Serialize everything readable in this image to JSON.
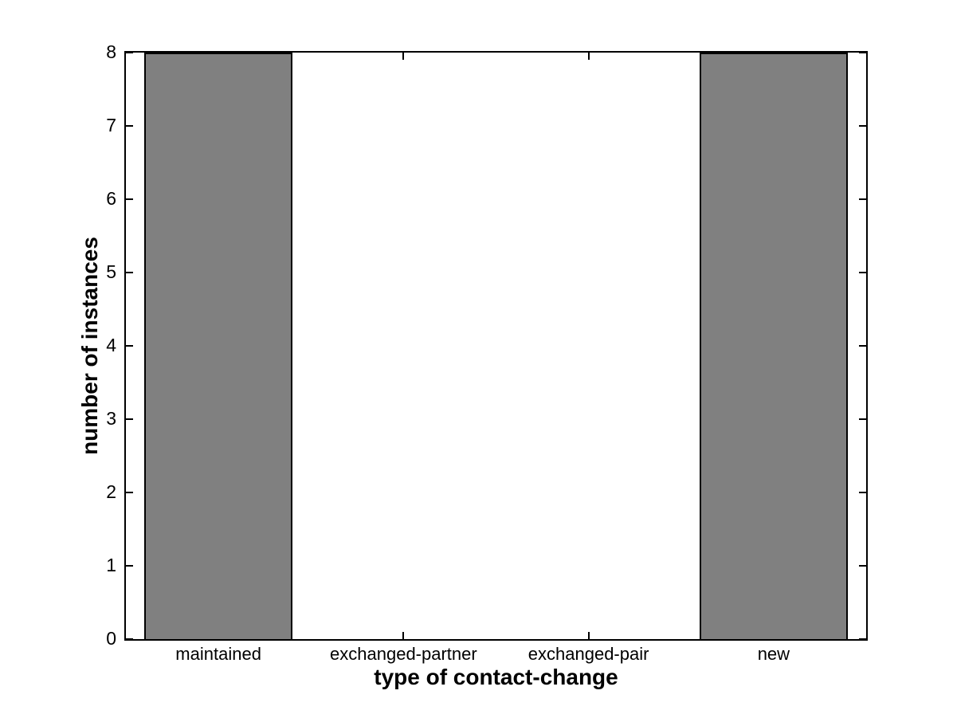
{
  "figure": {
    "background_color": "#ffffff"
  },
  "chart_data": {
    "type": "bar",
    "categories": [
      "maintained",
      "exchanged-partner",
      "exchanged-pair",
      "new"
    ],
    "values": [
      8,
      0,
      0,
      8
    ],
    "title": "",
    "xlabel": "type of contact-change",
    "ylabel": "number of instances",
    "ylim": [
      0,
      8
    ],
    "yticks": [
      0,
      1,
      2,
      3,
      4,
      5,
      6,
      7,
      8
    ],
    "bar_width_fraction": 0.8,
    "bar_color": "#808080",
    "bar_edge_color": "#000000",
    "axis_color": "#000000",
    "grid": false
  }
}
